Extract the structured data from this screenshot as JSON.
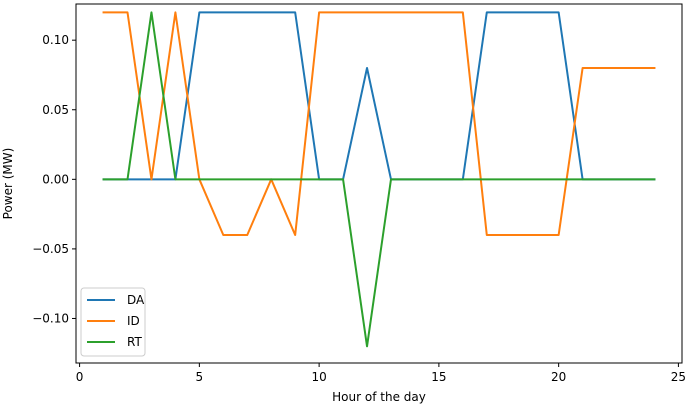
{
  "chart_data": {
    "type": "line",
    "title": "",
    "xlabel": "Hour of the day",
    "ylabel": "Power (MW)",
    "xlim": [
      -0.15,
      25.15
    ],
    "ylim": [
      -0.132,
      0.126
    ],
    "xticks": [
      0,
      5,
      10,
      15,
      20,
      25
    ],
    "xtick_labels": [
      "0",
      "5",
      "10",
      "15",
      "20",
      "25"
    ],
    "yticks": [
      -0.1,
      -0.05,
      0.0,
      0.05,
      0.1
    ],
    "ytick_labels": [
      "−0.10",
      "−0.05",
      "0.00",
      "0.05",
      "0.10"
    ],
    "grid": false,
    "legend_position": "lower-left",
    "x": [
      1,
      2,
      3,
      4,
      5,
      6,
      7,
      8,
      9,
      10,
      11,
      12,
      13,
      14,
      15,
      16,
      17,
      18,
      19,
      20,
      21,
      22,
      23,
      24
    ],
    "series": [
      {
        "name": "DA",
        "color": "#1f77b4",
        "values": [
          0,
          0,
          0,
          0,
          0.12,
          0.12,
          0.12,
          0.12,
          0.12,
          0,
          0,
          0.08,
          0,
          0,
          0,
          0,
          0.12,
          0.12,
          0.12,
          0.12,
          0,
          0,
          0,
          0
        ]
      },
      {
        "name": "ID",
        "color": "#ff7f0e",
        "values": [
          0.12,
          0.12,
          0,
          0.12,
          0,
          -0.04,
          -0.04,
          0,
          -0.04,
          0.12,
          0.12,
          0.12,
          0.12,
          0.12,
          0.12,
          0.12,
          -0.04,
          -0.04,
          -0.04,
          -0.04,
          0.08,
          0.08,
          0.08,
          0.08
        ]
      },
      {
        "name": "RT",
        "color": "#2ca02c",
        "values": [
          0,
          0,
          0.12,
          0,
          0,
          0,
          0,
          0,
          0,
          0,
          0,
          -0.12,
          0,
          0,
          0,
          0,
          0,
          0,
          0,
          0,
          0,
          0,
          0,
          0
        ]
      }
    ]
  }
}
